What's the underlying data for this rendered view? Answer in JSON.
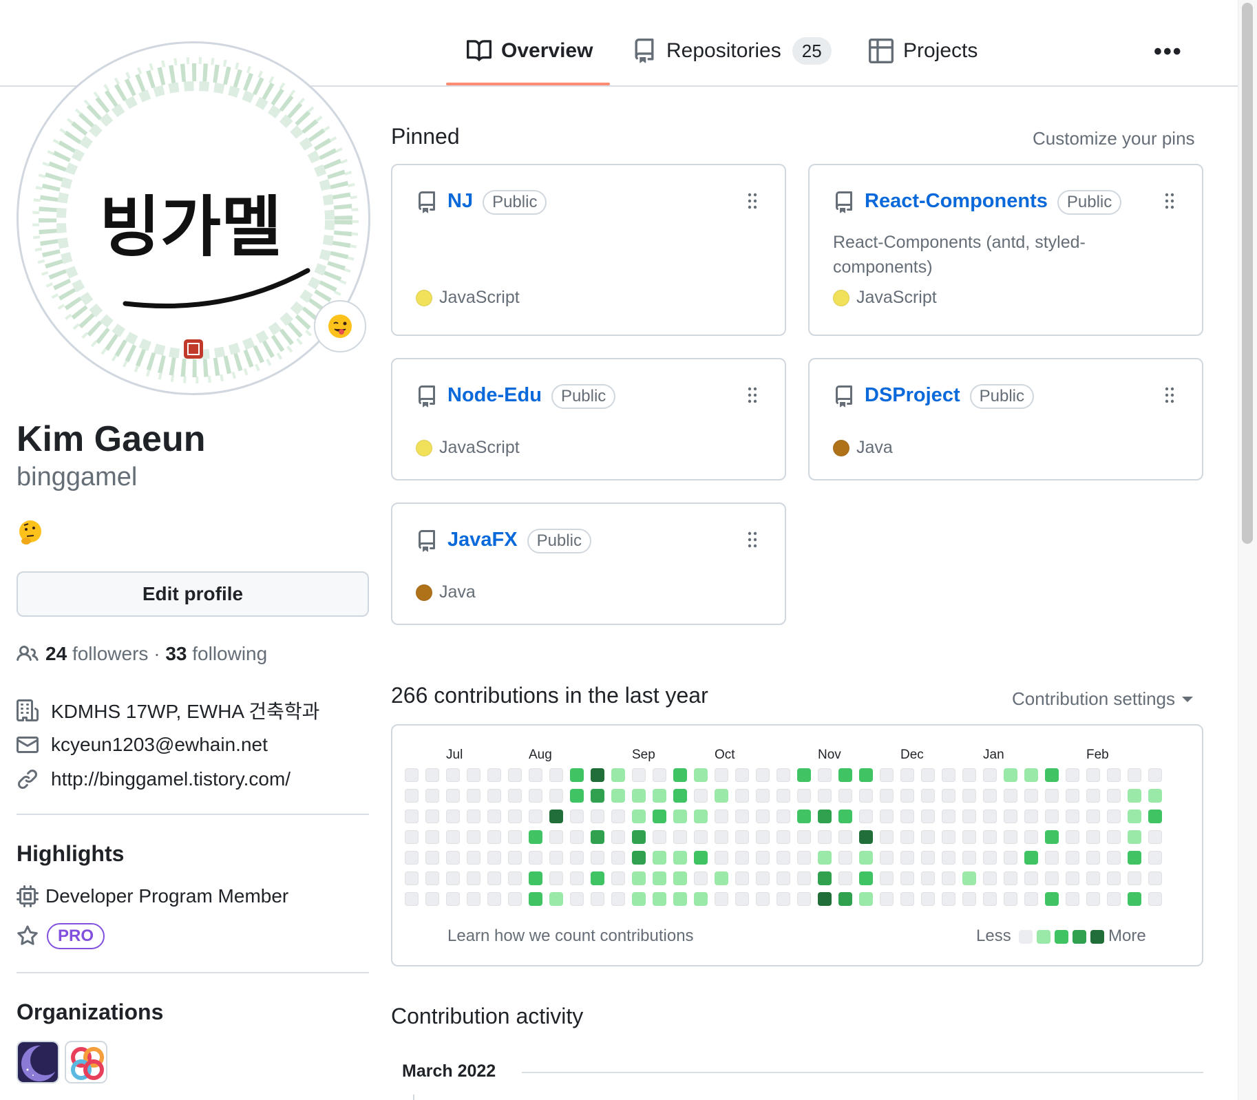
{
  "nav": {
    "tabs": [
      {
        "label": "Overview",
        "icon": "book-icon",
        "active": true
      },
      {
        "label": "Repositories",
        "icon": "repo-icon",
        "count": "25"
      },
      {
        "label": "Projects",
        "icon": "table-icon"
      }
    ],
    "more_label": "•••"
  },
  "profile": {
    "avatar_text": "빙가멜",
    "status_emoji": "😜",
    "fullname": "Kim Gaeun",
    "username": "binggamel",
    "bio_emoji": "🤔",
    "edit_button": "Edit profile",
    "followers_count": "24",
    "followers_label": "followers",
    "separator": "·",
    "following_count": "33",
    "following_label": "following",
    "company": "KDMHS 17WP, EWHA 건축학과",
    "email": "kcyeun1203@ewhain.net",
    "website": "http://binggamel.tistory.com/"
  },
  "highlights": {
    "title": "Highlights",
    "developer_program": "Developer Program Member",
    "pro": "PRO"
  },
  "organizations": {
    "title": "Organizations"
  },
  "pinned": {
    "title": "Pinned",
    "customize": "Customize your pins",
    "repos": [
      {
        "name": "NJ",
        "visibility": "Public",
        "description": "",
        "language": "JavaScript",
        "lang_color": "#f1e05a"
      },
      {
        "name": "React-Components",
        "visibility": "Public",
        "description": "React-Components (antd, styled-components)",
        "language": "JavaScript",
        "lang_color": "#f1e05a"
      },
      {
        "name": "Node-Edu",
        "visibility": "Public",
        "description": "",
        "language": "JavaScript",
        "lang_color": "#f1e05a"
      },
      {
        "name": "DSProject",
        "visibility": "Public",
        "description": "",
        "language": "Java",
        "lang_color": "#b07219"
      },
      {
        "name": "JavaFX",
        "visibility": "Public",
        "description": "",
        "language": "Java",
        "lang_color": "#b07219"
      }
    ]
  },
  "contributions": {
    "title": "266 contributions in the last year",
    "settings": "Contribution settings",
    "months": [
      "Jul",
      "Aug",
      "Sep",
      "Oct",
      "Nov",
      "Dec",
      "Jan",
      "Feb"
    ],
    "learn": "Learn how we count contributions",
    "less": "Less",
    "more": "More",
    "colors": [
      "#ebedf0",
      "#9be9a8",
      "#40c463",
      "#30a14e",
      "#216e39"
    ],
    "grid_note": "columns of weeks, rows Sun..Sat, level 0-4",
    "weeks": [
      [
        0,
        0,
        0,
        0,
        0,
        0,
        0
      ],
      [
        0,
        0,
        0,
        0,
        0,
        0,
        0
      ],
      [
        0,
        0,
        0,
        0,
        0,
        0,
        0
      ],
      [
        0,
        0,
        0,
        0,
        0,
        0,
        0
      ],
      [
        0,
        0,
        0,
        0,
        0,
        0,
        0
      ],
      [
        0,
        0,
        0,
        0,
        0,
        0,
        0
      ],
      [
        0,
        0,
        0,
        2,
        0,
        2,
        2
      ],
      [
        0,
        0,
        4,
        0,
        0,
        0,
        1
      ],
      [
        2,
        2,
        0,
        0,
        0,
        0,
        0
      ],
      [
        4,
        3,
        0,
        3,
        0,
        2,
        0
      ],
      [
        1,
        1,
        0,
        0,
        0,
        0,
        0
      ],
      [
        0,
        1,
        1,
        3,
        3,
        1,
        1
      ],
      [
        0,
        1,
        2,
        0,
        1,
        1,
        1
      ],
      [
        2,
        2,
        1,
        0,
        1,
        1,
        1
      ],
      [
        1,
        0,
        1,
        0,
        2,
        0,
        1
      ],
      [
        0,
        1,
        0,
        0,
        0,
        1,
        0
      ],
      [
        0,
        0,
        0,
        0,
        0,
        0,
        0
      ],
      [
        0,
        0,
        0,
        0,
        0,
        0,
        0
      ],
      [
        0,
        0,
        0,
        0,
        0,
        0,
        0
      ],
      [
        2,
        0,
        2,
        0,
        0,
        0,
        0
      ],
      [
        0,
        0,
        3,
        0,
        1,
        3,
        4
      ],
      [
        2,
        0,
        2,
        0,
        0,
        0,
        3
      ],
      [
        2,
        0,
        0,
        4,
        1,
        2,
        1
      ],
      [
        0,
        0,
        0,
        0,
        0,
        0,
        0
      ],
      [
        0,
        0,
        0,
        0,
        0,
        0,
        0
      ],
      [
        0,
        0,
        0,
        0,
        0,
        0,
        0
      ],
      [
        0,
        0,
        0,
        0,
        0,
        0,
        0
      ],
      [
        0,
        0,
        0,
        0,
        0,
        1,
        0
      ],
      [
        0,
        0,
        0,
        0,
        0,
        0,
        0
      ],
      [
        1,
        0,
        0,
        0,
        0,
        0,
        0
      ],
      [
        1,
        0,
        0,
        0,
        2,
        0,
        0
      ],
      [
        2,
        0,
        0,
        2,
        0,
        0,
        2
      ],
      [
        0,
        0,
        0,
        0,
        0,
        0,
        0
      ],
      [
        0,
        0,
        0,
        0,
        0,
        0,
        0
      ],
      [
        0,
        0,
        0,
        0,
        0,
        0,
        0
      ],
      [
        0,
        1,
        1,
        1,
        2,
        0,
        2
      ],
      [
        0,
        1,
        2,
        0,
        0,
        0,
        0
      ]
    ]
  },
  "activity": {
    "title": "Contribution activity",
    "month": "March 2022"
  }
}
